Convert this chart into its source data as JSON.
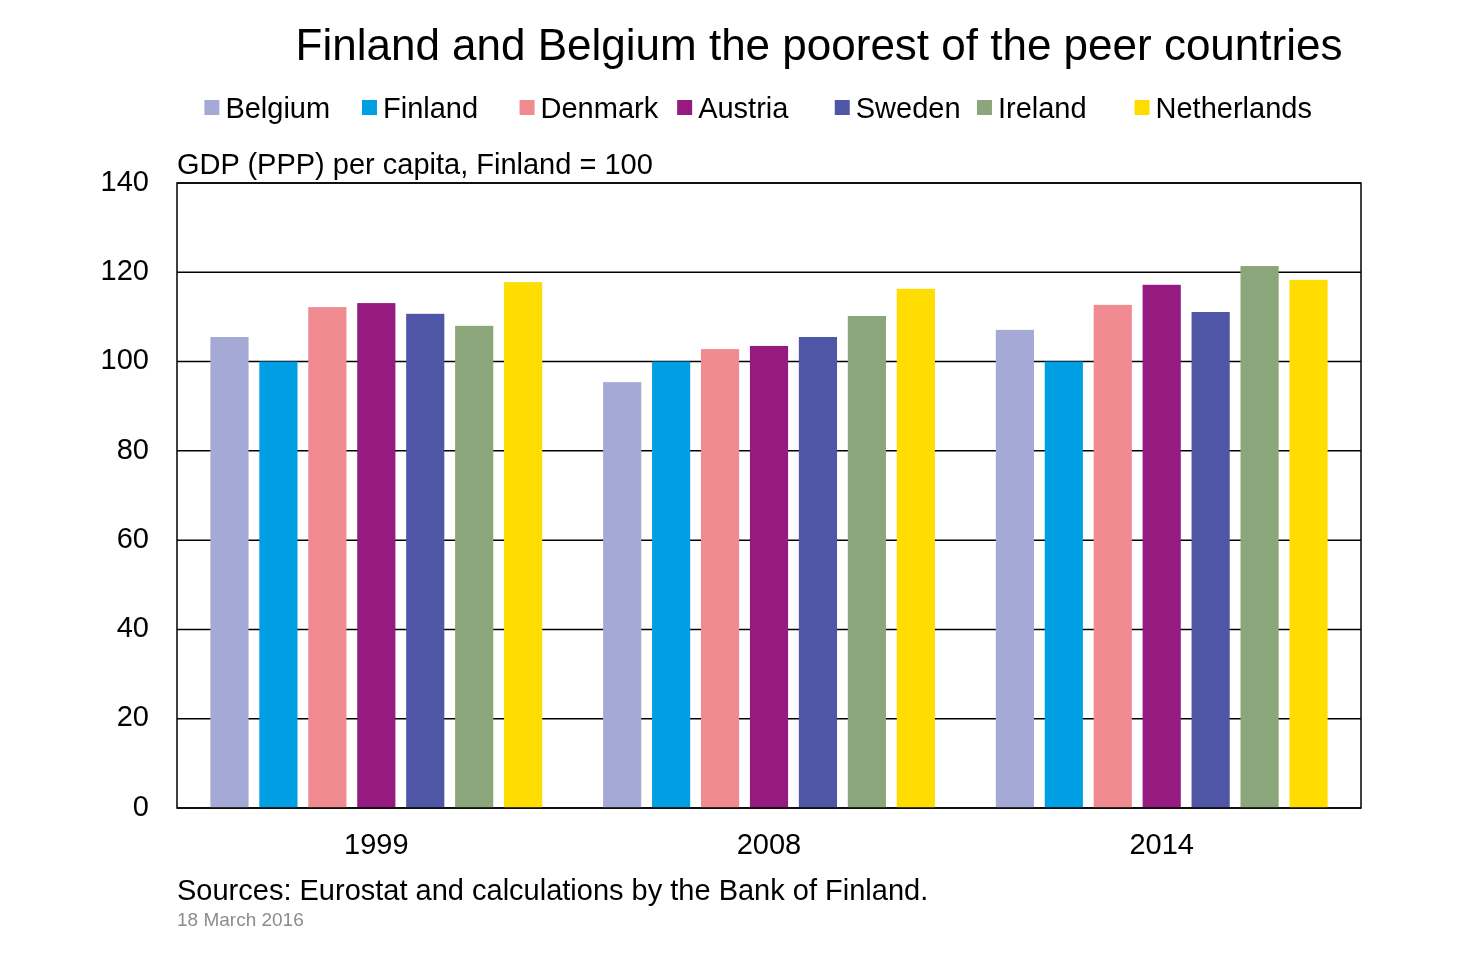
{
  "chart_data": {
    "type": "bar",
    "title": "Finland and Belgium the poorest of the peer countries",
    "ylabel": "GDP (PPP) per capita, Finland = 100",
    "categories": [
      "1999",
      "2008",
      "2014"
    ],
    "series": [
      {
        "name": "Belgium",
        "color": "#a5a9d6",
        "values": [
          105.5,
          95.4,
          107.1
        ]
      },
      {
        "name": "Finland",
        "color": "#009fe3",
        "values": [
          100,
          100,
          100
        ]
      },
      {
        "name": "Denmark",
        "color": "#f08b92",
        "values": [
          112.2,
          102.8,
          112.7
        ]
      },
      {
        "name": "Austria",
        "color": "#951b81",
        "values": [
          113.1,
          103.5,
          117.2
        ]
      },
      {
        "name": "Sweden",
        "color": "#4f56a5",
        "values": [
          110.7,
          105.5,
          111.1
        ]
      },
      {
        "name": "Ireland",
        "color": "#8ba67a",
        "values": [
          108.0,
          110.2,
          121.4
        ]
      },
      {
        "name": "Netherlands",
        "color": "#ffdd00",
        "values": [
          117.8,
          116.3,
          118.3
        ]
      }
    ],
    "ylim": [
      0,
      140
    ],
    "yticks": [
      0,
      20,
      40,
      60,
      80,
      100,
      120,
      140
    ],
    "grid": "y",
    "legend": "top",
    "annotations": [
      "Sources: Eurostat and calculations by the Bank of Finland.",
      "18 March 2016"
    ]
  }
}
